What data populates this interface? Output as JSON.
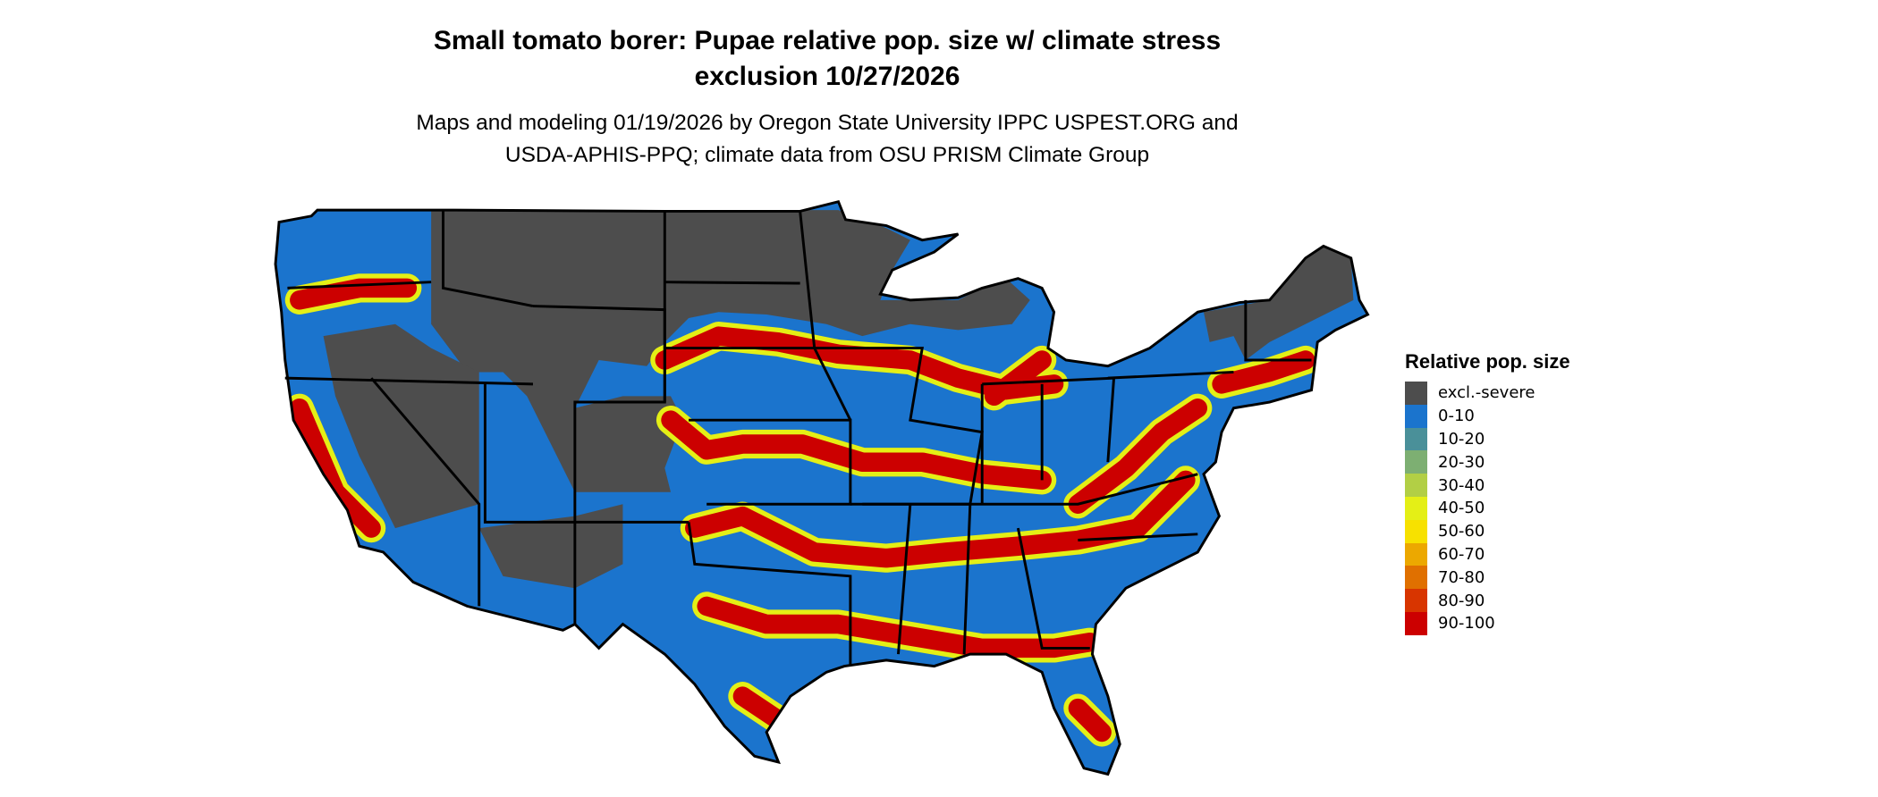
{
  "title": {
    "line1": "Small tomato borer: Pupae relative pop. size w/ climate stress",
    "line2": "exclusion 10/27/2026"
  },
  "subtitle": {
    "line1": "Maps and modeling 01/19/2026 by Oregon State University IPPC USPEST.ORG and",
    "line2": "USDA-APHIS-PPQ; climate data from OSU PRISM Climate Group"
  },
  "legend": {
    "title": "Relative pop. size",
    "items": [
      {
        "label": "excl.-severe",
        "color": "#4d4d4d"
      },
      {
        "label": "0-10",
        "color": "#1b74cd"
      },
      {
        "label": "10-20",
        "color": "#4a9099"
      },
      {
        "label": "20-30",
        "color": "#7daf72"
      },
      {
        "label": "30-40",
        "color": "#b2cf45"
      },
      {
        "label": "40-50",
        "color": "#e4ef16"
      },
      {
        "label": "50-60",
        "color": "#f7e100"
      },
      {
        "label": "60-70",
        "color": "#eca800"
      },
      {
        "label": "70-80",
        "color": "#e07000"
      },
      {
        "label": "80-90",
        "color": "#d83500"
      },
      {
        "label": "90-100",
        "color": "#cc0000"
      }
    ]
  },
  "map": {
    "region": "Contiguous United States",
    "state_border_color": "#000000"
  }
}
